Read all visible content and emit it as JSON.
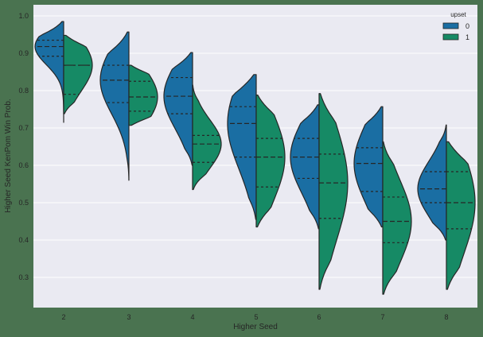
{
  "chart_data": {
    "type": "violin",
    "split": true,
    "inner": "quartile",
    "xlabel": "Higher Seed",
    "ylabel": "Higher Seed KenPom Win Prob.",
    "categories": [
      "2",
      "3",
      "4",
      "5",
      "6",
      "7",
      "8"
    ],
    "ylim": [
      0.22,
      1.02
    ],
    "yticks": [
      0.3,
      0.4,
      0.5,
      0.6,
      0.7,
      0.8,
      0.9,
      1.0
    ],
    "ytick_labels": [
      "0.3",
      "0.4",
      "0.5",
      "0.6",
      "0.7",
      "0.8",
      "0.9",
      "1.0"
    ],
    "grid": true,
    "legend": {
      "title": "upset",
      "position": "upper right",
      "entries": [
        {
          "label": "0",
          "color": "#1a6ea3"
        },
        {
          "label": "1",
          "color": "#168a65"
        }
      ]
    },
    "series": [
      {
        "name": "0",
        "color": "#1a6ea3",
        "side": "left",
        "violins": [
          {
            "category": "2",
            "min": 0.715,
            "max": 0.985,
            "q1": 0.892,
            "median": 0.918,
            "q3": 0.935
          },
          {
            "category": "3",
            "min": 0.56,
            "max": 0.957,
            "q1": 0.768,
            "median": 0.828,
            "q3": 0.868
          },
          {
            "category": "4",
            "min": 0.6,
            "max": 0.902,
            "q1": 0.738,
            "median": 0.785,
            "q3": 0.835
          },
          {
            "category": "5",
            "min": 0.455,
            "max": 0.843,
            "q1": 0.622,
            "median": 0.712,
            "q3": 0.757
          },
          {
            "category": "6",
            "min": 0.43,
            "max": 0.762,
            "q1": 0.565,
            "median": 0.622,
            "q3": 0.672
          },
          {
            "category": "7",
            "min": 0.435,
            "max": 0.757,
            "q1": 0.53,
            "median": 0.605,
            "q3": 0.647
          },
          {
            "category": "8",
            "min": 0.4,
            "max": 0.708,
            "q1": 0.5,
            "median": 0.537,
            "q3": 0.583
          }
        ]
      },
      {
        "name": "1",
        "color": "#168a65",
        "side": "right",
        "violins": [
          {
            "category": "2",
            "min": 0.738,
            "max": 0.948,
            "q1": 0.79,
            "median": 0.868,
            "q3": 0.868
          },
          {
            "category": "3",
            "min": 0.707,
            "max": 0.868,
            "q1": 0.745,
            "median": 0.783,
            "q3": 0.825
          },
          {
            "category": "4",
            "min": 0.535,
            "max": 0.815,
            "q1": 0.608,
            "median": 0.657,
            "q3": 0.68
          },
          {
            "category": "5",
            "min": 0.435,
            "max": 0.788,
            "q1": 0.542,
            "median": 0.622,
            "q3": 0.672
          },
          {
            "category": "6",
            "min": 0.268,
            "max": 0.792,
            "q1": 0.458,
            "median": 0.553,
            "q3": 0.63
          },
          {
            "category": "7",
            "min": 0.255,
            "max": 0.663,
            "q1": 0.393,
            "median": 0.45,
            "q3": 0.515
          },
          {
            "category": "8",
            "min": 0.268,
            "max": 0.663,
            "q1": 0.43,
            "median": 0.5,
            "q3": 0.583
          }
        ]
      }
    ]
  },
  "style": {
    "figure_bg": "#4a7350",
    "plot_bg": "#eaeaf2",
    "grid_color": "#ffffff",
    "edge_color": "#262626"
  }
}
